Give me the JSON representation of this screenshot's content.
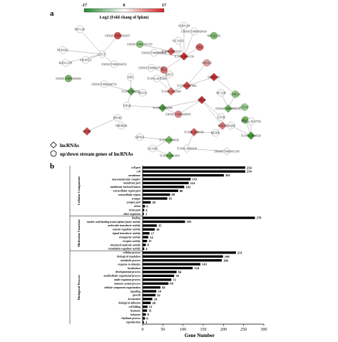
{
  "panel_a": {
    "label": "a",
    "colorbar": {
      "min": "-17",
      "mid": "0",
      "max": "17",
      "title": "Log2 (Fold chang of fpkm)",
      "low_color": "#1f8a2a",
      "high_color": "#d42020"
    },
    "legend": [
      {
        "shape": "diamond",
        "text": "lncRNAs"
      },
      {
        "shape": "circle",
        "text": "up/down stream genes of  lncRNAs"
      }
    ],
    "node_labels": [
      "AGRN-204",
      "PKP3-201",
      "SLC16A13",
      "MOCS2-202",
      "PIGM-022",
      "ENSSSCT00000032837",
      "ENSSSCT00000020430",
      "ENSSSCT00000037165",
      "ZNF132",
      "SKIDA1-201",
      "ANGPTL4",
      "CDC37",
      "TCONS_00011130",
      "TCONS_00011029",
      "ENSSSCT00000039839",
      "SPATA20",
      "PIGS",
      "STRA6-201",
      "ENSSSCT00000034593",
      "TCONS_00153066",
      "ENSSSCT00000029404",
      "TCONS_00025960",
      "ENSSSCT00000040756",
      "TCONS_00129757",
      "TOP2B",
      "DAG1",
      "BDK",
      "TCONS_00144906",
      "ENSSSCT00000037545",
      "TCONS_00078802",
      "CSNK2B",
      "PIEZO2",
      "SEC23IP",
      "ENSSSCT00000003246",
      "ENSSSCT00000028093",
      "PPP3R1",
      "CSPG4",
      "CD2AP",
      "ARL4C",
      "PAQR8",
      "TCONS_00137816",
      "TCONS_00149520",
      "TCONS_00096136",
      "TCONS_00181025",
      "METRN",
      "LCE2B",
      "RNF213",
      "GRIN3A",
      "SLC30A6",
      "TCONS_00013819",
      "TCONS_00023218",
      "ENSSSCT00000011398",
      "MESP1",
      "TMEM63B"
    ]
  },
  "panel_b": {
    "label": "b",
    "xlabel": "Gene Number",
    "groups": [
      {
        "name": "Cellular Component",
        "start": 0,
        "end": 12
      },
      {
        "name": "Molecular Function",
        "start": 13,
        "end": 21
      },
      {
        "name": "Biological Process",
        "start": 22,
        "end": 40
      }
    ]
  },
  "chart_data": {
    "type": "bar",
    "orientation": "horizontal",
    "xlabel": "Gene Number",
    "xlim": [
      0,
      300
    ],
    "xticks": [
      "0",
      "50",
      "100",
      "150",
      "200",
      "250",
      "300"
    ],
    "categories": [
      "cell part",
      "cell",
      "membrane",
      "macromolecular complex",
      "membrane part",
      "membrane-enclosed lumen",
      "extracellular region part",
      "extracellular region",
      "synapse",
      "synapse part",
      "virion",
      "virion part",
      "other organism",
      "binding",
      "nucleic acid binding transcription factor activity",
      "molecular transducer activity",
      "enzyme regulator activity",
      "signal transducer activity",
      "transporter activity",
      "receptor activity",
      "structural molecule activity",
      "translation regulator activity",
      "cellular process",
      "biological regulation",
      "metabolic process",
      "response to stimulus",
      "localization",
      "developmental process",
      "multicellular organismal process",
      "multi-organism process",
      "immune system process",
      "cellular component organization",
      "signaling",
      "growth",
      "locomotion",
      "biological adhesion",
      "cell killing",
      "hormone",
      "behavior",
      "rhythmic process",
      "reproduction"
    ],
    "values": [
      254,
      254,
      201,
      119,
      114,
      103,
      88,
      68,
      61,
      20,
      6,
      4,
      3,
      278,
      105,
      35,
      30,
      17,
      14,
      11,
      8,
      4,
      231,
      199,
      196,
      143,
      124,
      84,
      78,
      71,
      64,
      44,
      34,
      32,
      24,
      20,
      12,
      11,
      8,
      6,
      3
    ],
    "labels": [
      "254",
      "254",
      "201",
      "119",
      "114",
      "103",
      "88",
      "68",
      "61",
      "20",
      "6",
      "4",
      "3",
      "278",
      "105",
      "35",
      "30",
      "17",
      "14",
      "11",
      "8",
      "4",
      "231",
      "199",
      "196",
      "143",
      "124",
      "84",
      "78",
      "71",
      "64",
      "44",
      "34",
      "32",
      "24",
      "20",
      "12",
      "11",
      "8",
      "6",
      "3"
    ],
    "bar_color": "#000000"
  }
}
